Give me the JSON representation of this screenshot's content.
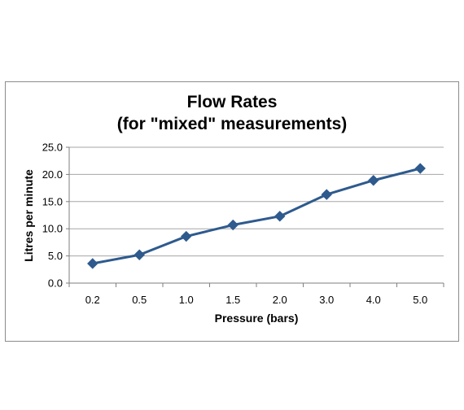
{
  "chart_data": {
    "type": "line",
    "title": "Flow Rates",
    "subtitle": "(for \"mixed\" measurements)",
    "xlabel": "Pressure (bars)",
    "ylabel": "Litres per minute",
    "categories": [
      "0.2",
      "0.5",
      "1.0",
      "1.5",
      "2.0",
      "3.0",
      "4.0",
      "5.0"
    ],
    "values": [
      3.6,
      5.2,
      8.6,
      10.7,
      12.3,
      16.3,
      18.9,
      21.1
    ],
    "ylim": [
      0,
      25
    ],
    "yticks": [
      "0.0",
      "5.0",
      "10.0",
      "15.0",
      "20.0",
      "25.0"
    ],
    "grid": true,
    "legend": "none",
    "line_color": "#2E5A8E"
  }
}
